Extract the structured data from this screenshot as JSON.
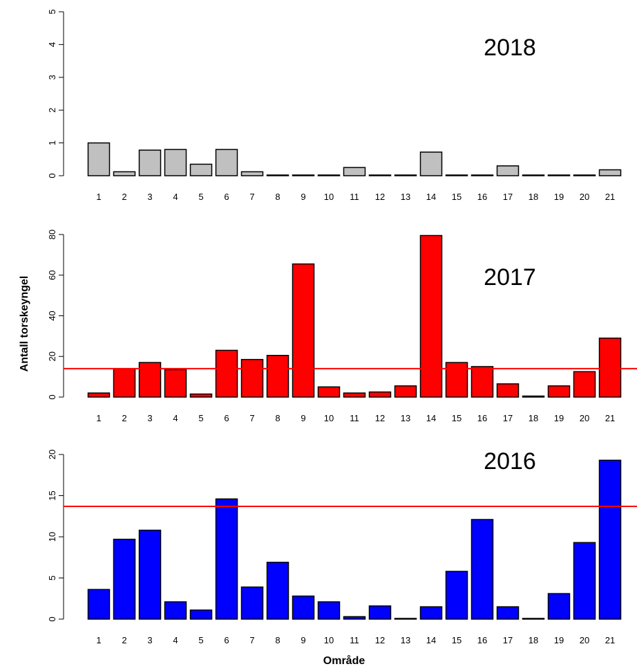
{
  "figure": {
    "ylabel": "Antall torskeyngel",
    "xlabel": "Område"
  },
  "chart_data": [
    {
      "type": "bar",
      "title": "2018",
      "color": "#c0c0c0",
      "categories": [
        "1",
        "2",
        "3",
        "4",
        "5",
        "6",
        "7",
        "8",
        "9",
        "10",
        "11",
        "12",
        "13",
        "14",
        "15",
        "16",
        "17",
        "18",
        "19",
        "20",
        "21"
      ],
      "values": [
        1.0,
        0.12,
        0.78,
        0.8,
        0.35,
        0.8,
        0.12,
        0.0,
        0.0,
        0.0,
        0.25,
        0.0,
        0.0,
        0.72,
        0.0,
        0.0,
        0.3,
        0.0,
        0.0,
        0.0,
        0.18
      ],
      "ylim": [
        0,
        5
      ],
      "yticks": [
        "0",
        "1",
        "2",
        "3",
        "4",
        "5"
      ],
      "ytick_values": [
        0,
        1,
        2,
        3,
        4,
        5
      ],
      "hline": null
    },
    {
      "type": "bar",
      "title": "2017",
      "color": "#ff0000",
      "categories": [
        "1",
        "2",
        "3",
        "4",
        "5",
        "6",
        "7",
        "8",
        "9",
        "10",
        "11",
        "12",
        "13",
        "14",
        "15",
        "16",
        "17",
        "18",
        "19",
        "20",
        "21"
      ],
      "values": [
        2,
        14,
        17,
        13.5,
        1.5,
        23,
        18.5,
        20.5,
        65.5,
        5,
        2,
        2.5,
        5.5,
        79.5,
        17,
        15,
        6.5,
        0.5,
        5.5,
        12.5,
        29
      ],
      "ylim": [
        0,
        80
      ],
      "yticks": [
        "0",
        "20",
        "40",
        "60",
        "80"
      ],
      "ytick_values": [
        0,
        20,
        40,
        60,
        80
      ],
      "hline": 14,
      "hline_color": "#ff0000"
    },
    {
      "type": "bar",
      "title": "2016",
      "color": "#0000ff",
      "categories": [
        "1",
        "2",
        "3",
        "4",
        "5",
        "6",
        "7",
        "8",
        "9",
        "10",
        "11",
        "12",
        "13",
        "14",
        "15",
        "16",
        "17",
        "18",
        "19",
        "20",
        "21"
      ],
      "values": [
        3.6,
        9.7,
        10.8,
        2.1,
        1.1,
        14.6,
        3.9,
        6.9,
        2.8,
        2.1,
        0.3,
        1.6,
        0.05,
        1.5,
        5.8,
        12.1,
        1.5,
        0.05,
        3.1,
        9.3,
        19.3
      ],
      "ylim": [
        0,
        20
      ],
      "yticks": [
        "0",
        "5",
        "10",
        "15",
        "20"
      ],
      "ytick_values": [
        0,
        5,
        10,
        15,
        20
      ],
      "hline": 13.7,
      "hline_color": "#ff0000"
    }
  ]
}
